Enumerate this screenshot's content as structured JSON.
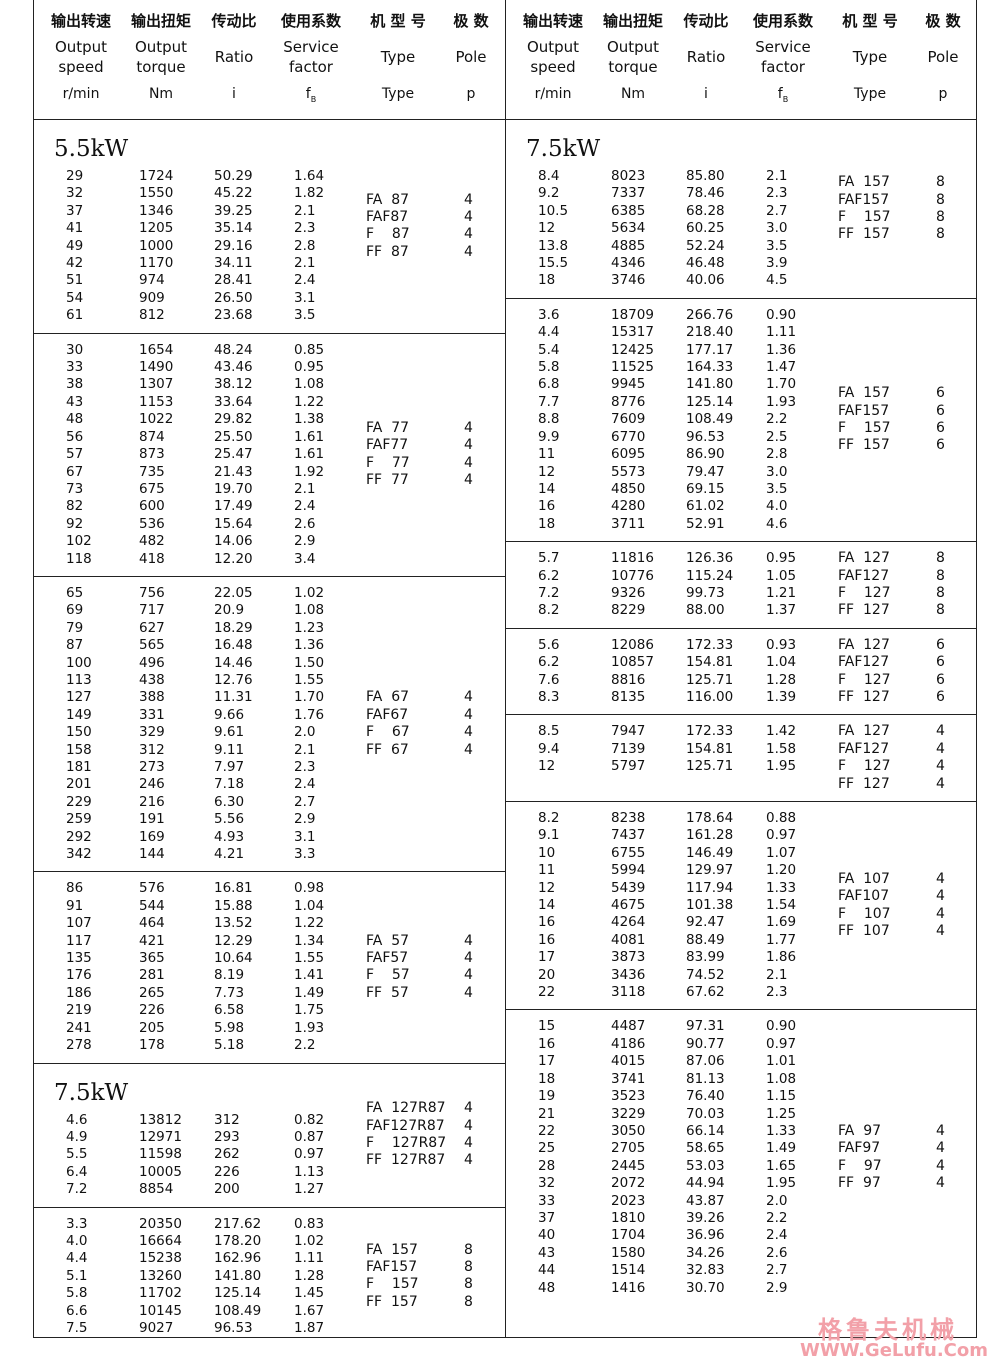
{
  "header": {
    "zh": [
      "输出转速",
      "输出扭矩",
      "传动比",
      "使用系数",
      "机 型 号",
      "极  数"
    ],
    "en": [
      "Output\nspeed",
      "Output\ntorque",
      "Ratio",
      "Service\nfactor",
      "Type",
      "Pole"
    ],
    "units": [
      {
        "text": "r/min"
      },
      {
        "text": "Nm"
      },
      {
        "text": "i"
      },
      {
        "text": "f",
        "sub": "B"
      },
      {
        "text": "Type"
      },
      {
        "text": "p"
      }
    ]
  },
  "panels": [
    {
      "blocks": [
        {
          "power": "5.5kW",
          "rows": [
            [
              "29",
              "1724",
              "50.29",
              "1.64"
            ],
            [
              "32",
              "1550",
              "45.22",
              "1.82"
            ],
            [
              "37",
              "1346",
              "39.25",
              "2.1"
            ],
            [
              "41",
              "1205",
              "35.14",
              "2.3"
            ],
            [
              "49",
              "1000",
              "29.16",
              "2.8"
            ],
            [
              "42",
              "1170",
              "34.11",
              "2.1"
            ],
            [
              "51",
              "974",
              "28.41",
              "2.4"
            ],
            [
              "54",
              "909",
              "26.50",
              "3.1"
            ],
            [
              "61",
              "812",
              "23.68",
              "3.5"
            ]
          ],
          "types": [
            "FA  87",
            "FAF87",
            "F    87",
            "FF  87"
          ],
          "poles": [
            "4",
            "4",
            "4",
            "4"
          ]
        },
        {
          "rows": [
            [
              "30",
              "1654",
              "48.24",
              "0.85"
            ],
            [
              "33",
              "1490",
              "43.46",
              "0.95"
            ],
            [
              "38",
              "1307",
              "38.12",
              "1.08"
            ],
            [
              "43",
              "1153",
              "33.64",
              "1.22"
            ],
            [
              "48",
              "1022",
              "29.82",
              "1.38"
            ],
            [
              "56",
              "874",
              "25.50",
              "1.61"
            ],
            [
              "57",
              "873",
              "25.47",
              "1.61"
            ],
            [
              "67",
              "735",
              "21.43",
              "1.92"
            ],
            [
              "73",
              "675",
              "19.70",
              "2.1"
            ],
            [
              "82",
              "600",
              "17.49",
              "2.4"
            ],
            [
              "92",
              "536",
              "15.64",
              "2.6"
            ],
            [
              "102",
              "482",
              "14.06",
              "2.9"
            ],
            [
              "118",
              "418",
              "12.20",
              "3.4"
            ]
          ],
          "types": [
            "FA  77",
            "FAF77",
            "F    77",
            "FF  77"
          ],
          "poles": [
            "4",
            "4",
            "4",
            "4"
          ]
        },
        {
          "rows": [
            [
              "65",
              "756",
              "22.05",
              "1.02"
            ],
            [
              "69",
              "717",
              "20.9",
              "1.08"
            ],
            [
              "79",
              "627",
              "18.29",
              "1.23"
            ],
            [
              "87",
              "565",
              "16.48",
              "1.36"
            ],
            [
              "100",
              "496",
              "14.46",
              "1.50"
            ],
            [
              "113",
              "438",
              "12.76",
              "1.55"
            ],
            [
              "127",
              "388",
              "11.31",
              "1.70"
            ],
            [
              "149",
              "331",
              "9.66",
              "1.76"
            ],
            [
              "150",
              "329",
              "9.61",
              "2.0"
            ],
            [
              "158",
              "312",
              "9.11",
              "2.1"
            ],
            [
              "181",
              "273",
              "7.97",
              "2.3"
            ],
            [
              "201",
              "246",
              "7.18",
              "2.4"
            ],
            [
              "229",
              "216",
              "6.30",
              "2.7"
            ],
            [
              "259",
              "191",
              "5.56",
              "2.9"
            ],
            [
              "292",
              "169",
              "4.93",
              "3.1"
            ],
            [
              "342",
              "144",
              "4.21",
              "3.3"
            ]
          ],
          "types": [
            "FA  67",
            "FAF67",
            "F    67",
            "FF  67"
          ],
          "poles": [
            "4",
            "4",
            "4",
            "4"
          ]
        },
        {
          "rows": [
            [
              "86",
              "576",
              "16.81",
              "0.98"
            ],
            [
              "91",
              "544",
              "15.88",
              "1.04"
            ],
            [
              "107",
              "464",
              "13.52",
              "1.22"
            ],
            [
              "117",
              "421",
              "12.29",
              "1.34"
            ],
            [
              "135",
              "365",
              "10.64",
              "1.55"
            ],
            [
              "176",
              "281",
              "8.19",
              "1.41"
            ],
            [
              "186",
              "265",
              "7.73",
              "1.49"
            ],
            [
              "219",
              "226",
              "6.58",
              "1.75"
            ],
            [
              "241",
              "205",
              "5.98",
              "1.93"
            ],
            [
              "278",
              "178",
              "5.18",
              "2.2"
            ]
          ],
          "types": [
            "FA  57",
            "FAF57",
            "F    57",
            "FF  57"
          ],
          "poles": [
            "4",
            "4",
            "4",
            "4"
          ]
        },
        {
          "power": "7.5kW",
          "rows": [
            [
              "4.6",
              "13812",
              "312",
              "0.82"
            ],
            [
              "4.9",
              "12971",
              "293",
              "0.87"
            ],
            [
              "5.5",
              "11598",
              "262",
              "0.97"
            ],
            [
              "6.4",
              "10005",
              "226",
              "1.13"
            ],
            [
              "7.2",
              "8854",
              "200",
              "1.27"
            ]
          ],
          "types": [
            "FA  127R87",
            "FAF127R87",
            "F    127R87",
            "FF  127R87"
          ],
          "poles": [
            "4",
            "4",
            "4",
            "4"
          ]
        },
        {
          "rows": [
            [
              "3.3",
              "20350",
              "217.62",
              "0.83"
            ],
            [
              "4.0",
              "16664",
              "178.20",
              "1.02"
            ],
            [
              "4.4",
              "15238",
              "162.96",
              "1.11"
            ],
            [
              "5.1",
              "13260",
              "141.80",
              "1.28"
            ],
            [
              "5.8",
              "11702",
              "125.14",
              "1.45"
            ],
            [
              "6.6",
              "10145",
              "108.49",
              "1.67"
            ],
            [
              "7.5",
              "9027",
              "96.53",
              "1.87"
            ]
          ],
          "types": [
            "FA  157",
            "FAF157",
            "F    157",
            "FF  157"
          ],
          "poles": [
            "8",
            "8",
            "8",
            "8"
          ]
        }
      ]
    },
    {
      "blocks": [
        {
          "power": "7.5kW",
          "rows": [
            [
              "8.4",
              "8023",
              "85.80",
              "2.1"
            ],
            [
              "9.2",
              "7337",
              "78.46",
              "2.3"
            ],
            [
              "10.5",
              "6385",
              "68.28",
              "2.7"
            ],
            [
              "12",
              "5634",
              "60.25",
              "3.0"
            ],
            [
              "13.8",
              "4885",
              "52.24",
              "3.5"
            ],
            [
              "15.5",
              "4346",
              "46.48",
              "3.9"
            ],
            [
              "18",
              "3746",
              "40.06",
              "4.5"
            ]
          ],
          "types": [
            "FA  157",
            "FAF157",
            "F    157",
            "FF  157"
          ],
          "poles": [
            "8",
            "8",
            "8",
            "8"
          ]
        },
        {
          "rows": [
            [
              "3.6",
              "18709",
              "266.76",
              "0.90"
            ],
            [
              "4.4",
              "15317",
              "218.40",
              "1.11"
            ],
            [
              "5.4",
              "12425",
              "177.17",
              "1.36"
            ],
            [
              "5.8",
              "11525",
              "164.33",
              "1.47"
            ],
            [
              "6.8",
              "9945",
              "141.80",
              "1.70"
            ],
            [
              "7.7",
              "8776",
              "125.14",
              "1.93"
            ],
            [
              "8.8",
              "7609",
              "108.49",
              "2.2"
            ],
            [
              "9.9",
              "6770",
              "96.53",
              "2.5"
            ],
            [
              "11",
              "6095",
              "86.90",
              "2.8"
            ],
            [
              "12",
              "5573",
              "79.47",
              "3.0"
            ],
            [
              "14",
              "4850",
              "69.15",
              "3.5"
            ],
            [
              "16",
              "4280",
              "61.02",
              "4.0"
            ],
            [
              "18",
              "3711",
              "52.91",
              "4.6"
            ]
          ],
          "types": [
            "FA  157",
            "FAF157",
            "F    157",
            "FF  157"
          ],
          "poles": [
            "6",
            "6",
            "6",
            "6"
          ]
        },
        {
          "rows": [
            [
              "5.7",
              "11816",
              "126.36",
              "0.95"
            ],
            [
              "6.2",
              "10776",
              "115.24",
              "1.05"
            ],
            [
              "7.2",
              "9326",
              "99.73",
              "1.21"
            ],
            [
              "8.2",
              "8229",
              "88.00",
              "1.37"
            ]
          ],
          "types": [
            "FA  127",
            "FAF127",
            "F    127",
            "FF  127"
          ],
          "poles": [
            "8",
            "8",
            "8",
            "8"
          ]
        },
        {
          "rows": [
            [
              "5.6",
              "12086",
              "172.33",
              "0.93"
            ],
            [
              "6.2",
              "10857",
              "154.81",
              "1.04"
            ],
            [
              "7.6",
              "8816",
              "125.71",
              "1.28"
            ],
            [
              "8.3",
              "8135",
              "116.00",
              "1.39"
            ]
          ],
          "types": [
            "FA  127",
            "FAF127",
            "F    127",
            "FF  127"
          ],
          "poles": [
            "6",
            "6",
            "6",
            "6"
          ]
        },
        {
          "rows": [
            [
              "8.5",
              "7947",
              "172.33",
              "1.42"
            ],
            [
              "9.4",
              "7139",
              "154.81",
              "1.58"
            ],
            [
              "12",
              "5797",
              "125.71",
              "1.95"
            ]
          ],
          "types": [
            "FA  127",
            "FAF127",
            "F    127",
            "FF  127"
          ],
          "poles": [
            "4",
            "4",
            "4",
            "4"
          ]
        },
        {
          "rows": [
            [
              "8.2",
              "8238",
              "178.64",
              "0.88"
            ],
            [
              "9.1",
              "7437",
              "161.28",
              "0.97"
            ],
            [
              "10",
              "6755",
              "146.49",
              "1.07"
            ],
            [
              "11",
              "5994",
              "129.97",
              "1.20"
            ],
            [
              "12",
              "5439",
              "117.94",
              "1.33"
            ],
            [
              "14",
              "4675",
              "101.38",
              "1.54"
            ],
            [
              "16",
              "4264",
              "92.47",
              "1.69"
            ],
            [
              "16",
              "4081",
              "88.49",
              "1.77"
            ],
            [
              "17",
              "3873",
              "83.99",
              "1.86"
            ],
            [
              "20",
              "3436",
              "74.52",
              "2.1"
            ],
            [
              "22",
              "3118",
              "67.62",
              "2.3"
            ]
          ],
          "types": [
            "FA  107",
            "FAF107",
            "F    107",
            "FF  107"
          ],
          "poles": [
            "4",
            "4",
            "4",
            "4"
          ]
        },
        {
          "rows": [
            [
              "15",
              "4487",
              "97.31",
              "0.90"
            ],
            [
              "16",
              "4186",
              "90.77",
              "0.97"
            ],
            [
              "17",
              "4015",
              "87.06",
              "1.01"
            ],
            [
              "18",
              "3741",
              "81.13",
              "1.08"
            ],
            [
              "19",
              "3523",
              "76.40",
              "1.15"
            ],
            [
              "21",
              "3229",
              "70.03",
              "1.25"
            ],
            [
              "22",
              "3050",
              "66.14",
              "1.33"
            ],
            [
              "25",
              "2705",
              "58.65",
              "1.49"
            ],
            [
              "28",
              "2445",
              "53.03",
              "1.65"
            ],
            [
              "32",
              "2072",
              "44.94",
              "1.95"
            ],
            [
              "33",
              "2023",
              "43.87",
              "2.0"
            ],
            [
              "37",
              "1810",
              "39.26",
              "2.2"
            ],
            [
              "40",
              "1704",
              "36.96",
              "2.4"
            ],
            [
              "43",
              "1580",
              "34.26",
              "2.6"
            ],
            [
              "44",
              "1514",
              "32.83",
              "2.7"
            ],
            [
              "48",
              "1416",
              "30.70",
              "2.9"
            ]
          ],
          "types": [
            "FA  97",
            "FAF97",
            "F    97",
            "FF  97"
          ],
          "poles": [
            "4",
            "4",
            "4",
            "4"
          ]
        }
      ]
    }
  ],
  "watermark": {
    "zh": "格鲁夫机械",
    "url": "WWW.GeLufu.Com"
  }
}
